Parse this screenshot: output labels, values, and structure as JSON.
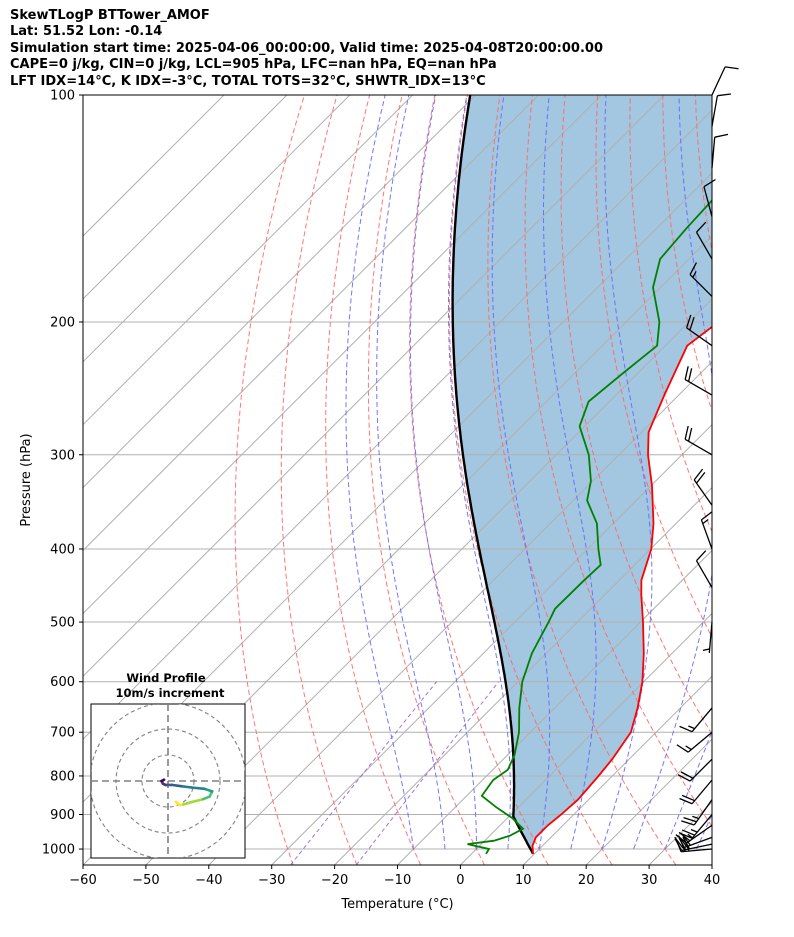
{
  "title_lines": [
    "SkewTLogP BTTower_AMOF",
    "Lat: 51.52   Lon: -0.14",
    "Simulation start time: 2025-04-06_00:00:00, Valid time: 2025-04-08T20:00:00.00",
    "CAPE=0 j/kg, CIN=0 j/kg, LCL=905 hPa, LFC=nan hPa, EQ=nan hPa",
    "LFT IDX=14°C, K IDX=-3°C, TOTAL TOTS=32°C, SHWTR_IDX=13°C"
  ],
  "chart_data": [
    {
      "type": "line",
      "subtype": "skew-t log-p",
      "xlabel": "Temperature (°C)",
      "ylabel": "Pressure (hPa)",
      "xlim": [
        -60,
        40
      ],
      "ylim": [
        1050,
        100
      ],
      "y_scale": "log",
      "x_ticks": [
        -60,
        -50,
        -40,
        -30,
        -20,
        -10,
        0,
        10,
        20,
        30,
        40
      ],
      "y_ticks": [
        100,
        200,
        300,
        400,
        500,
        600,
        700,
        800,
        900,
        1000
      ],
      "grid": true,
      "colors": {
        "temperature": "#ff0000",
        "dewpoint": "#008000",
        "parcel": "#000000",
        "cape_fill": "#a3c7e0",
        "dry_adiabat": "#ff6666",
        "moist_adiabat": "#6666ff",
        "mixing_ratio": "#9966cc",
        "isotherm": "#b0b0b0"
      },
      "series": [
        {
          "role": "temperature",
          "points": [
            {
              "p": 1015,
              "t": 9.8
            },
            {
              "p": 990,
              "t": 8.4
            },
            {
              "p": 965,
              "t": 7.6
            },
            {
              "p": 930,
              "t": 7.6
            },
            {
              "p": 900,
              "t": 8.0
            },
            {
              "p": 860,
              "t": 8.3
            },
            {
              "p": 800,
              "t": 7.8
            },
            {
              "p": 760,
              "t": 7.3
            },
            {
              "p": 700,
              "t": 6.0
            },
            {
              "p": 650,
              "t": 3.2
            },
            {
              "p": 600,
              "t": -0.2
            },
            {
              "p": 550,
              "t": -4.5
            },
            {
              "p": 500,
              "t": -9.6
            },
            {
              "p": 460,
              "t": -14.2
            },
            {
              "p": 440,
              "t": -16.5
            },
            {
              "p": 400,
              "t": -19.9
            },
            {
              "p": 370,
              "t": -23.6
            },
            {
              "p": 330,
              "t": -29.8
            },
            {
              "p": 300,
              "t": -35.4
            },
            {
              "p": 280,
              "t": -38.9
            },
            {
              "p": 250,
              "t": -42.3
            },
            {
              "p": 215,
              "t": -46.5
            },
            {
              "p": 200,
              "t": -45.3
            },
            {
              "p": 175,
              "t": -44.0
            },
            {
              "p": 150,
              "t": -46.5
            },
            {
              "p": 130,
              "t": -50.3
            },
            {
              "p": 115,
              "t": -54.2
            },
            {
              "p": 100,
              "t": -58.7
            }
          ]
        },
        {
          "role": "dewpoint",
          "points": [
            {
              "p": 1015,
              "t": 2.3
            },
            {
              "p": 1000,
              "t": 2.0
            },
            {
              "p": 985,
              "t": -2.2
            },
            {
              "p": 975,
              "t": 1.5
            },
            {
              "p": 960,
              "t": 3.2
            },
            {
              "p": 940,
              "t": 4.2
            },
            {
              "p": 910,
              "t": 0.8
            },
            {
              "p": 880,
              "t": -3.5
            },
            {
              "p": 850,
              "t": -7.6
            },
            {
              "p": 810,
              "t": -8.3
            },
            {
              "p": 785,
              "t": -7.6
            },
            {
              "p": 750,
              "t": -8.9
            },
            {
              "p": 700,
              "t": -11.8
            },
            {
              "p": 650,
              "t": -15.6
            },
            {
              "p": 600,
              "t": -19.3
            },
            {
              "p": 550,
              "t": -22.3
            },
            {
              "p": 500,
              "t": -24.6
            },
            {
              "p": 480,
              "t": -25.7
            },
            {
              "p": 440,
              "t": -25.6
            },
            {
              "p": 420,
              "t": -25.4
            },
            {
              "p": 400,
              "t": -28.3
            },
            {
              "p": 370,
              "t": -32.6
            },
            {
              "p": 345,
              "t": -37.8
            },
            {
              "p": 325,
              "t": -40.3
            },
            {
              "p": 300,
              "t": -44.8
            },
            {
              "p": 275,
              "t": -50.8
            },
            {
              "p": 255,
              "t": -53.3
            },
            {
              "p": 235,
              "t": -52.4
            },
            {
              "p": 215,
              "t": -51.3
            },
            {
              "p": 200,
              "t": -54.7
            },
            {
              "p": 180,
              "t": -61.2
            },
            {
              "p": 165,
              "t": -64.6
            },
            {
              "p": 150,
              "t": -65.3
            },
            {
              "p": 130,
              "t": -65.9
            },
            {
              "p": 115,
              "t": -66.5
            },
            {
              "p": 100,
              "t": -67.7
            }
          ]
        }
      ],
      "parcel_profile": {
        "surface_pressure": 1015,
        "surface_temperature": 9.8,
        "lcl_pressure": 905,
        "lcl_temperature": 2.9
      },
      "wind_barbs": [
        {
          "p": 1000,
          "speed_kt": 31,
          "dir_deg": 265
        },
        {
          "p": 985,
          "speed_kt": 32,
          "dir_deg": 258
        },
        {
          "p": 965,
          "speed_kt": 30,
          "dir_deg": 250
        },
        {
          "p": 930,
          "speed_kt": 27,
          "dir_deg": 235
        },
        {
          "p": 900,
          "speed_kt": 25,
          "dir_deg": 220
        },
        {
          "p": 860,
          "speed_kt": 23,
          "dir_deg": 215
        },
        {
          "p": 810,
          "speed_kt": 20,
          "dir_deg": 220
        },
        {
          "p": 760,
          "speed_kt": 18,
          "dir_deg": 225
        },
        {
          "p": 700,
          "speed_kt": 16,
          "dir_deg": 230
        },
        {
          "p": 650,
          "speed_kt": 14,
          "dir_deg": 220
        },
        {
          "p": 500,
          "speed_kt": 5,
          "dir_deg": 185
        },
        {
          "p": 450,
          "speed_kt": 10,
          "dir_deg": 330
        },
        {
          "p": 400,
          "speed_kt": 15,
          "dir_deg": 340
        },
        {
          "p": 350,
          "speed_kt": 20,
          "dir_deg": 325
        },
        {
          "p": 300,
          "speed_kt": 20,
          "dir_deg": 300
        },
        {
          "p": 250,
          "speed_kt": 20,
          "dir_deg": 300
        },
        {
          "p": 215,
          "speed_kt": 20,
          "dir_deg": 305
        },
        {
          "p": 185,
          "speed_kt": 15,
          "dir_deg": 315
        },
        {
          "p": 165,
          "speed_kt": 10,
          "dir_deg": 330
        },
        {
          "p": 145,
          "speed_kt": 10,
          "dir_deg": 345
        },
        {
          "p": 125,
          "speed_kt": 10,
          "dir_deg": 5
        },
        {
          "p": 110,
          "speed_kt": 10,
          "dir_deg": 10
        },
        {
          "p": 100,
          "speed_kt": 10,
          "dir_deg": 25
        }
      ]
    },
    {
      "type": "line",
      "subtype": "hodograph",
      "title": "Wind Profile",
      "subtitle": "10m/s increment",
      "ring_increment_ms": 10,
      "rings": 3,
      "colormap": "viridis",
      "points": [
        {
          "u": 3.0,
          "v": -8.0
        },
        {
          "u": 4.5,
          "v": -9.2
        },
        {
          "u": 6.0,
          "v": -9.0
        },
        {
          "u": 9.5,
          "v": -8.0
        },
        {
          "u": 13.5,
          "v": -7.0
        },
        {
          "u": 16.0,
          "v": -6.0
        },
        {
          "u": 17.0,
          "v": -4.0
        },
        {
          "u": 14.0,
          "v": -3.0
        },
        {
          "u": 9.0,
          "v": -2.5
        },
        {
          "u": 5.0,
          "v": -2.0
        },
        {
          "u": 1.5,
          "v": -1.5
        },
        {
          "u": -1.0,
          "v": -1.5
        },
        {
          "u": -2.0,
          "v": -1.0
        },
        {
          "u": -2.5,
          "v": 0.0
        },
        {
          "u": -1.5,
          "v": 0.5
        }
      ]
    }
  ]
}
